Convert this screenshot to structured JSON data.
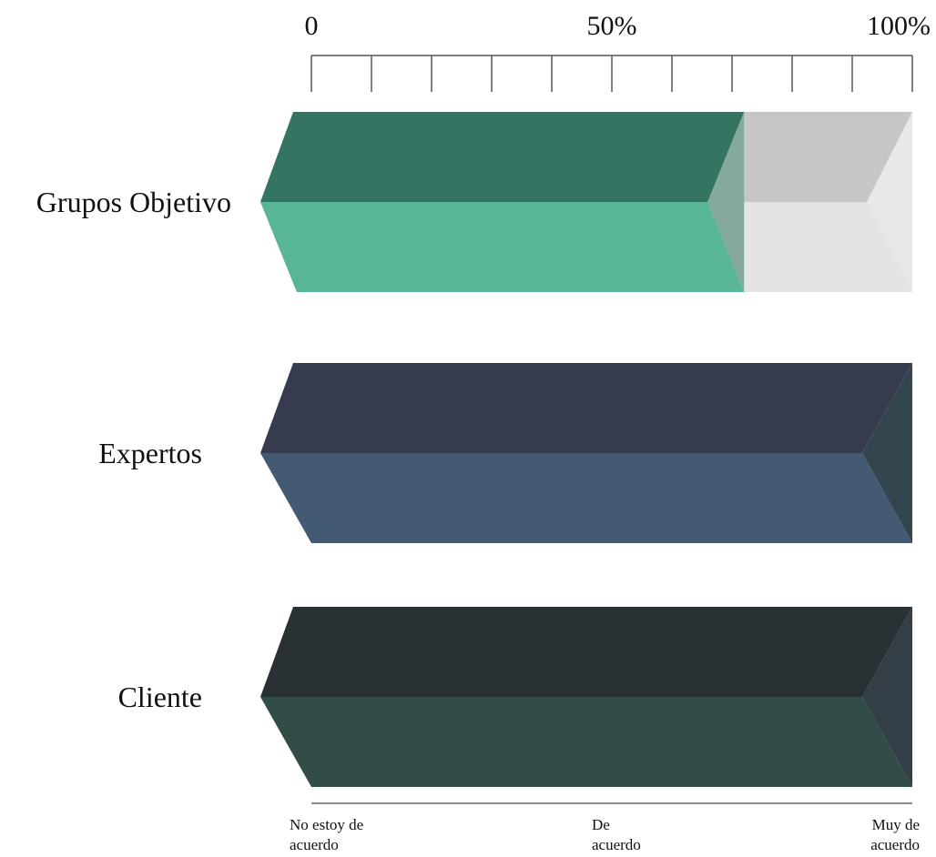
{
  "chart_data": {
    "type": "bar",
    "orientation": "horizontal",
    "stacked": true,
    "xlim": [
      0,
      100
    ],
    "x_tick_labels": [
      {
        "value": 0,
        "label": "0"
      },
      {
        "value": 50,
        "label": "50%"
      },
      {
        "value": 100,
        "label": "100%"
      }
    ],
    "x_minor_ticks": [
      0,
      10,
      20,
      30,
      40,
      50,
      60,
      70,
      80,
      90,
      100
    ],
    "categories": [
      "Grupos Objetivo",
      "Expertos",
      "Cliente"
    ],
    "series": [
      {
        "values": [
          72,
          100,
          100
        ],
        "colors": [
          {
            "top": "#357463",
            "bottom": "#58b598"
          },
          {
            "top": "#363b4d",
            "bottom": "#445a72"
          },
          {
            "top": "#2a3135",
            "bottom": "#324c48"
          }
        ]
      },
      {
        "values": [
          28,
          0,
          0
        ],
        "colors": [
          {
            "top": "#c6c6c6",
            "bottom": "#e3e3e3"
          },
          {
            "top": "#c6c6c6",
            "bottom": "#e3e3e3"
          },
          {
            "top": "#c6c6c6",
            "bottom": "#e3e3e3"
          }
        ]
      }
    ],
    "end_cap_colors": [
      "#85aa9b",
      "#33454f",
      "#343e46"
    ],
    "scale_labels": [
      {
        "position": 0,
        "text": "No estoy de acuerdo",
        "lines": [
          "No estoy de",
          "acuerdo"
        ]
      },
      {
        "position": 50,
        "text": "De acuerdo",
        "lines": [
          "De",
          "acuerdo"
        ]
      },
      {
        "position": 100,
        "text": "Muy de acuerdo",
        "lines": [
          "Muy de",
          "acuerdo"
        ]
      }
    ],
    "title": "",
    "xlabel": "",
    "ylabel": ""
  }
}
